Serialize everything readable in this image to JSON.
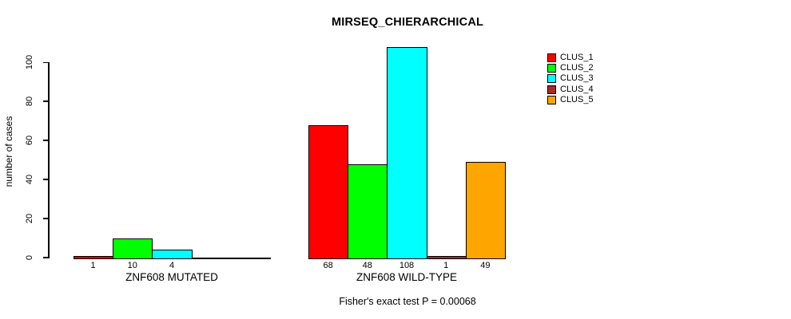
{
  "title": "MIRSEQ_CHIERARCHICAL",
  "annotation": "Fisher's exact test P = 0.00068",
  "y_axis_label": "number of cases",
  "legend": [
    {
      "label": "CLUS_1",
      "color": "#ff0000"
    },
    {
      "label": "CLUS_2",
      "color": "#00ff00"
    },
    {
      "label": "CLUS_3",
      "color": "#00ffff"
    },
    {
      "label": "CLUS_4",
      "color": "#a52a2a"
    },
    {
      "label": "CLUS_5",
      "color": "#ffa500"
    }
  ],
  "chart_data": {
    "type": "bar",
    "title": "MIRSEQ_CHIERARCHICAL",
    "ylabel": "number of cases",
    "ylim": [
      0,
      100
    ],
    "yticks": [
      0,
      20,
      40,
      60,
      80,
      100
    ],
    "grid": false,
    "legend_position": "top-right",
    "series_names": [
      "CLUS_1",
      "CLUS_2",
      "CLUS_3",
      "CLUS_4",
      "CLUS_5"
    ],
    "colors": [
      "#ff0000",
      "#00ff00",
      "#00ffff",
      "#a52a2a",
      "#ffa500"
    ],
    "groups": [
      {
        "label": "ZNF608 MUTATED",
        "values": [
          1,
          10,
          4,
          0,
          0
        ],
        "bar_labels": [
          "1",
          "10",
          "4",
          "",
          ""
        ]
      },
      {
        "label": "ZNF608 WILD-TYPE",
        "values": [
          68,
          48,
          108,
          1,
          49
        ],
        "bar_labels": [
          "68",
          "48",
          "108",
          "1",
          "49"
        ]
      }
    ],
    "annotation": "Fisher's exact test P = 0.00068"
  }
}
